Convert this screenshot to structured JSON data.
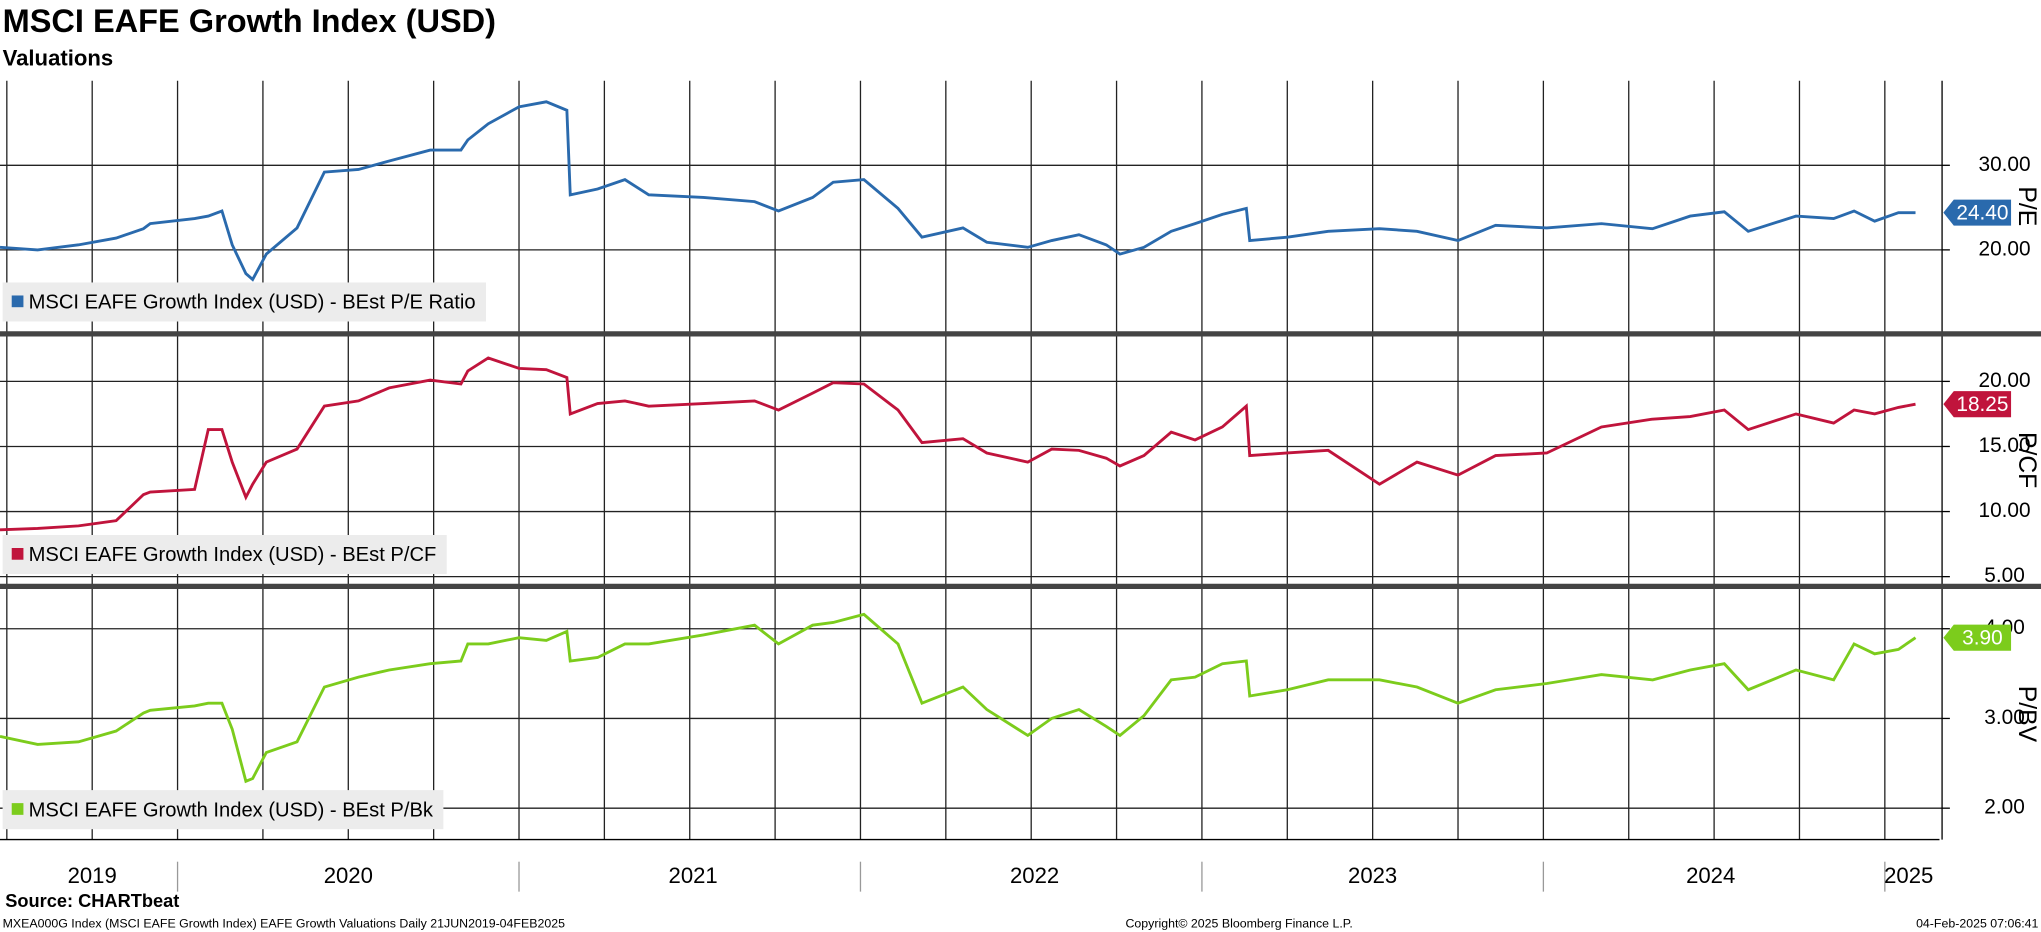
{
  "title": "MSCI EAFE Growth Index (USD)",
  "subtitle": "Valuations",
  "source": "Source: CHARTbeat",
  "footer_left": "MXEA000G Index (MSCI EAFE Growth Index) EAFE Growth Valuations  Daily 21JUN2019-04FEB2025",
  "footer_center": "Copyright© 2025 Bloomberg Finance L.P.",
  "footer_right": "04-Feb-2025 07:06:41",
  "chart_data": [
    {
      "type": "line",
      "axis_label": "P/E",
      "x": [
        2019.48,
        2019.59,
        2019.71,
        2019.82,
        2019.9,
        2019.92,
        2020.05,
        2020.09,
        2020.13,
        2020.16,
        2020.2,
        2020.22,
        2020.26,
        2020.35,
        2020.43,
        2020.53,
        2020.62,
        2020.74,
        2020.83,
        2020.85,
        2020.91,
        2021.0,
        2021.08,
        2021.14,
        2021.15,
        2021.23,
        2021.31,
        2021.38,
        2021.54,
        2021.69,
        2021.76,
        2021.86,
        2021.92,
        2022.01,
        2022.11,
        2022.18,
        2022.3,
        2022.37,
        2022.49,
        2022.56,
        2022.64,
        2022.72,
        2022.76,
        2022.83,
        2022.91,
        2022.98,
        2023.06,
        2023.13,
        2023.14,
        2023.25,
        2023.37,
        2023.52,
        2023.63,
        2023.75,
        2023.86,
        2024.01,
        2024.17,
        2024.32,
        2024.43,
        2024.53,
        2024.6,
        2024.74,
        2024.85,
        2024.91,
        2024.97,
        2025.04,
        2025.09
      ],
      "series": [
        {
          "name": "MSCI EAFE Growth Index (USD) - BEst P/E Ratio",
          "color": "#2a6aad",
          "values": [
            20.3,
            20.0,
            20.6,
            21.4,
            22.5,
            23.1,
            23.7,
            24.0,
            24.6,
            20.6,
            17.2,
            16.5,
            19.5,
            22.6,
            29.2,
            29.5,
            30.5,
            31.8,
            31.8,
            33.0,
            34.9,
            36.9,
            37.5,
            36.5,
            26.5,
            27.2,
            28.3,
            26.5,
            26.2,
            25.7,
            24.6,
            26.2,
            28.0,
            28.3,
            24.9,
            21.5,
            22.6,
            20.9,
            20.3,
            21.1,
            21.8,
            20.6,
            19.5,
            20.3,
            22.2,
            23.1,
            24.2,
            24.9,
            21.1,
            21.5,
            22.2,
            22.5,
            22.2,
            21.1,
            22.9,
            22.6,
            23.1,
            22.5,
            24.0,
            24.5,
            22.2,
            24.0,
            23.7,
            24.6,
            23.4,
            24.4,
            24.4
          ],
          "last": {
            "value": 24.4,
            "label": "24.40"
          }
        }
      ],
      "xlim": [
        2019.48,
        2025.16
      ],
      "ylim": [
        10.3,
        40
      ],
      "yticks": [
        {
          "value": 20,
          "label": "20.00"
        },
        {
          "value": 30,
          "label": "30.00"
        }
      ],
      "xgrid": [
        2019.5,
        2019.75,
        2020,
        2020.25,
        2020.5,
        2020.75,
        2021,
        2021.25,
        2021.5,
        2021.75,
        2022,
        2022.25,
        2022.5,
        2022.75,
        2023,
        2023.25,
        2023.5,
        2023.75,
        2024,
        2024.25,
        2024.5,
        2024.75,
        2025
      ]
    },
    {
      "type": "line",
      "axis_label": "P/CF",
      "x": [
        2019.48,
        2019.59,
        2019.71,
        2019.82,
        2019.9,
        2019.92,
        2020.05,
        2020.09,
        2020.13,
        2020.16,
        2020.2,
        2020.22,
        2020.26,
        2020.35,
        2020.43,
        2020.53,
        2020.62,
        2020.74,
        2020.83,
        2020.85,
        2020.91,
        2021.0,
        2021.08,
        2021.14,
        2021.15,
        2021.23,
        2021.31,
        2021.38,
        2021.54,
        2021.69,
        2021.76,
        2021.86,
        2021.92,
        2022.01,
        2022.11,
        2022.18,
        2022.3,
        2022.37,
        2022.49,
        2022.56,
        2022.64,
        2022.72,
        2022.76,
        2022.83,
        2022.91,
        2022.98,
        2023.06,
        2023.13,
        2023.14,
        2023.25,
        2023.37,
        2023.52,
        2023.63,
        2023.75,
        2023.86,
        2024.01,
        2024.17,
        2024.32,
        2024.43,
        2024.53,
        2024.6,
        2024.74,
        2024.85,
        2024.91,
        2024.97,
        2025.04,
        2025.09
      ],
      "series": [
        {
          "name": "MSCI EAFE Growth Index (USD) - BEst P/CF",
          "color": "#c0143c",
          "values": [
            8.6,
            8.7,
            8.9,
            9.3,
            11.3,
            11.5,
            11.7,
            16.3,
            16.3,
            13.8,
            11.1,
            12.1,
            13.8,
            14.8,
            18.1,
            18.5,
            19.5,
            20.1,
            19.8,
            20.8,
            21.8,
            21.0,
            20.9,
            20.3,
            17.5,
            18.3,
            18.5,
            18.1,
            18.3,
            18.5,
            17.8,
            19.1,
            19.9,
            19.8,
            17.8,
            15.3,
            15.6,
            14.5,
            13.8,
            14.8,
            14.7,
            14.1,
            13.5,
            14.3,
            16.1,
            15.5,
            16.5,
            18.1,
            14.3,
            14.5,
            14.7,
            12.1,
            13.8,
            12.8,
            14.3,
            14.5,
            16.5,
            17.1,
            17.3,
            17.8,
            16.3,
            17.5,
            16.8,
            17.8,
            17.5,
            18.0,
            18.25
          ],
          "last": {
            "value": 18.25,
            "label": "18.25"
          }
        }
      ],
      "xlim": [
        2019.48,
        2025.16
      ],
      "ylim": [
        4.4,
        23.5
      ],
      "yticks": [
        {
          "value": 5,
          "label": "5.00"
        },
        {
          "value": 10,
          "label": "10.00"
        },
        {
          "value": 15,
          "label": "15.00"
        },
        {
          "value": 20,
          "label": "20.00"
        }
      ],
      "xgrid": [
        2019.5,
        2019.75,
        2020,
        2020.25,
        2020.5,
        2020.75,
        2021,
        2021.25,
        2021.5,
        2021.75,
        2022,
        2022.25,
        2022.5,
        2022.75,
        2023,
        2023.25,
        2023.5,
        2023.75,
        2024,
        2024.25,
        2024.5,
        2024.75,
        2025
      ]
    },
    {
      "type": "line",
      "axis_label": "P/BV",
      "x": [
        2019.48,
        2019.59,
        2019.71,
        2019.82,
        2019.9,
        2019.92,
        2020.05,
        2020.09,
        2020.13,
        2020.16,
        2020.2,
        2020.22,
        2020.26,
        2020.35,
        2020.43,
        2020.53,
        2020.62,
        2020.74,
        2020.83,
        2020.85,
        2020.91,
        2021.0,
        2021.08,
        2021.14,
        2021.15,
        2021.23,
        2021.31,
        2021.38,
        2021.54,
        2021.69,
        2021.76,
        2021.86,
        2021.92,
        2022.01,
        2022.11,
        2022.18,
        2022.3,
        2022.37,
        2022.49,
        2022.56,
        2022.64,
        2022.72,
        2022.76,
        2022.83,
        2022.91,
        2022.98,
        2023.06,
        2023.13,
        2023.14,
        2023.25,
        2023.37,
        2023.52,
        2023.63,
        2023.75,
        2023.86,
        2024.01,
        2024.17,
        2024.32,
        2024.43,
        2024.53,
        2024.6,
        2024.74,
        2024.85,
        2024.91,
        2024.97,
        2025.04,
        2025.09
      ],
      "series": [
        {
          "name": "MSCI EAFE Growth Index (USD) - BEst P/Bk",
          "color": "#7ccc1c",
          "values": [
            2.8,
            2.71,
            2.74,
            2.86,
            3.06,
            3.09,
            3.14,
            3.17,
            3.17,
            2.88,
            2.3,
            2.33,
            2.62,
            2.74,
            3.35,
            3.46,
            3.54,
            3.61,
            3.64,
            3.83,
            3.83,
            3.9,
            3.87,
            3.97,
            3.64,
            3.68,
            3.83,
            3.83,
            3.93,
            4.04,
            3.83,
            4.04,
            4.07,
            4.16,
            3.83,
            3.17,
            3.35,
            3.1,
            2.81,
            3.0,
            3.1,
            2.91,
            2.81,
            3.03,
            3.43,
            3.46,
            3.61,
            3.64,
            3.25,
            3.32,
            3.43,
            3.43,
            3.35,
            3.17,
            3.32,
            3.39,
            3.49,
            3.43,
            3.54,
            3.61,
            3.32,
            3.54,
            3.43,
            3.83,
            3.72,
            3.77,
            3.9
          ],
          "last": {
            "value": 3.9,
            "label": "3.90"
          }
        }
      ],
      "xlim": [
        2019.48,
        2025.16
      ],
      "ylim": [
        1.65,
        4.45
      ],
      "yticks": [
        {
          "value": 2,
          "label": "2.00"
        },
        {
          "value": 3,
          "label": "3.00"
        },
        {
          "value": 4,
          "label": "4.00"
        }
      ],
      "xgrid": [
        2019.5,
        2019.75,
        2020,
        2020.25,
        2020.5,
        2020.75,
        2021,
        2021.25,
        2021.5,
        2021.75,
        2022,
        2022.25,
        2022.5,
        2022.75,
        2023,
        2023.25,
        2023.5,
        2023.75,
        2024,
        2024.25,
        2024.5,
        2024.75,
        2025
      ],
      "xticks": [
        {
          "value": 2019.75,
          "label": "2019"
        },
        {
          "value": 2020.5,
          "label": "2020"
        },
        {
          "value": 2021.51,
          "label": "2021"
        },
        {
          "value": 2022.51,
          "label": "2022"
        },
        {
          "value": 2023.5,
          "label": "2023"
        },
        {
          "value": 2024.49,
          "label": "2024"
        },
        {
          "value": 2025.07,
          "label": "2025"
        }
      ]
    }
  ]
}
